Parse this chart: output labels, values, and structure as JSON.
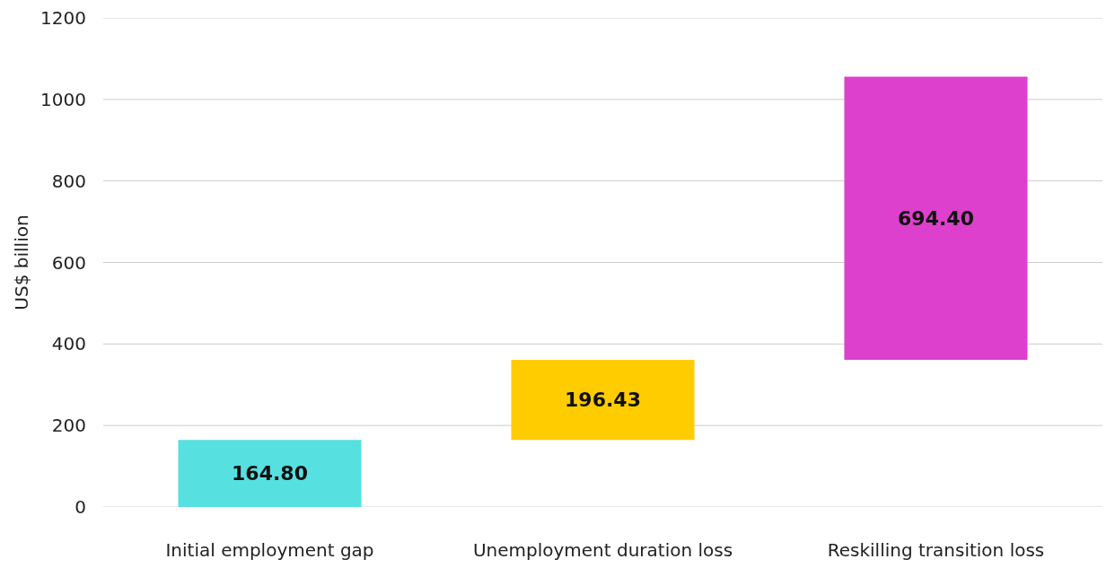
{
  "chart_data": {
    "type": "bar",
    "ylabel": "US$ billion",
    "categories": [
      "Initial employment gap",
      "Unemployment duration loss",
      "Reskilling transition loss"
    ],
    "values": [
      164.8,
      196.43,
      694.4
    ],
    "base": [
      0,
      164.8,
      361.23
    ],
    "colors": [
      "#56e0e0",
      "#ffcc00",
      "#dd40cc"
    ],
    "value_labels": [
      "164.80",
      "196.43",
      "694.40"
    ],
    "ylim": [
      0,
      1200
    ],
    "yticks": [
      0,
      200,
      400,
      600,
      800,
      1000,
      1200
    ],
    "grid": "y"
  }
}
